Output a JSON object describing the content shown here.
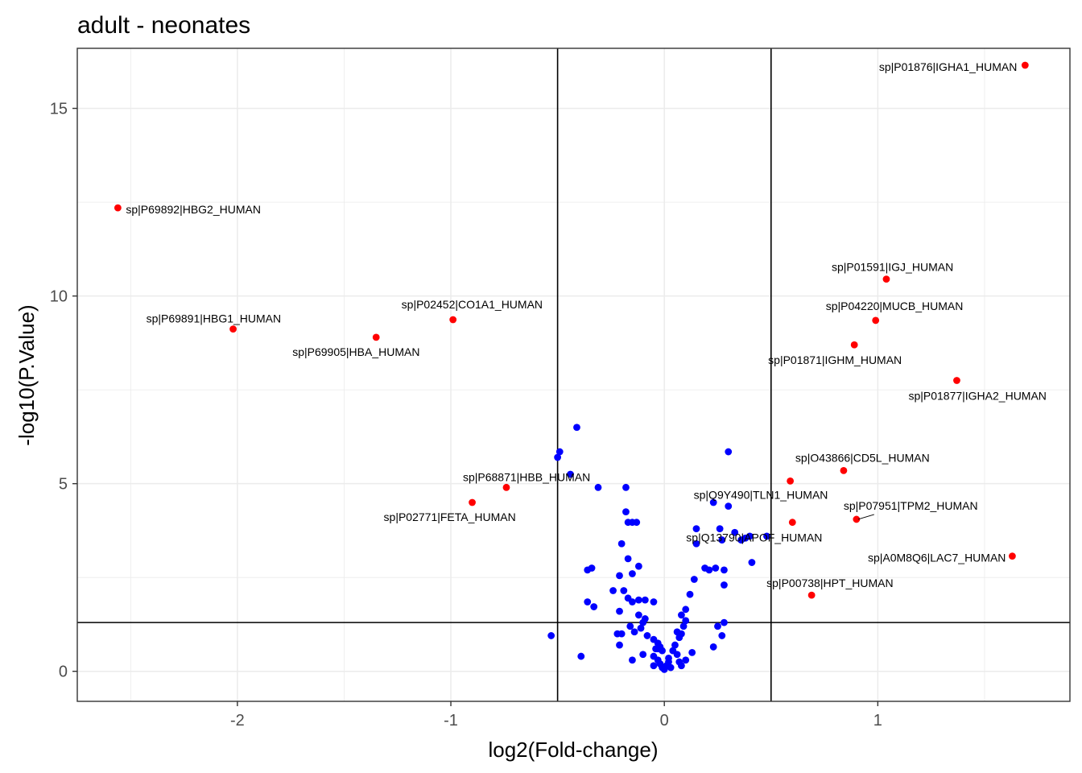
{
  "chart_data": {
    "type": "scatter",
    "title": "adult - neonates",
    "xlabel": "log2(Fold-change)",
    "ylabel": "-log10(P.Value)",
    "xlim": [
      -2.75,
      1.9
    ],
    "ylim": [
      -0.8,
      16.6
    ],
    "x_ticks": [
      -2,
      -1,
      0,
      1
    ],
    "y_ticks": [
      0,
      5,
      10,
      15
    ],
    "x_tick_labels": [
      "-2",
      "-1",
      "0",
      "1"
    ],
    "y_tick_labels": [
      "0",
      "5",
      "10",
      "15"
    ],
    "grid": true,
    "theme": "bw",
    "thresholds": {
      "fold_change": [
        -0.5,
        0.5
      ],
      "p_value_line": 1.3
    },
    "colors": {
      "significant": "#ff0000",
      "not_significant": "#0000ff",
      "line": "#000000",
      "grid": "#ebebeb",
      "label_text": "#000000"
    },
    "significant": [
      {
        "label": "sp|P01876|IGHA1_HUMAN",
        "x": 1.69,
        "y": 16.15
      },
      {
        "label": "sp|P69892|HBG2_HUMAN",
        "x": -2.56,
        "y": 12.35
      },
      {
        "label": "sp|P01591|IGJ_HUMAN",
        "x": 1.04,
        "y": 10.45
      },
      {
        "label": "sp|P02452|CO1A1_HUMAN",
        "x": -0.99,
        "y": 9.37
      },
      {
        "label": "sp|P04220|MUCB_HUMAN",
        "x": 0.99,
        "y": 9.35
      },
      {
        "label": "sp|P69891|HBG1_HUMAN",
        "x": -2.02,
        "y": 9.12
      },
      {
        "label": "sp|P69905|HBA_HUMAN",
        "x": -1.35,
        "y": 8.9
      },
      {
        "label": "sp|P01871|IGHM_HUMAN",
        "x": 0.89,
        "y": 8.7
      },
      {
        "label": "sp|P01877|IGHA2_HUMAN",
        "x": 1.37,
        "y": 7.75
      },
      {
        "label": "sp|O43866|CD5L_HUMAN",
        "x": 0.84,
        "y": 5.35
      },
      {
        "label": "sp|Q9Y490|TLN1_HUMAN",
        "x": 0.59,
        "y": 5.07
      },
      {
        "label": "sp|P68871|HBB_HUMAN",
        "x": -0.74,
        "y": 4.9
      },
      {
        "label": "sp|P02771|FETA_HUMAN",
        "x": -0.9,
        "y": 4.5
      },
      {
        "label": "sp|P07951|TPM2_HUMAN",
        "x": 0.9,
        "y": 4.05
      },
      {
        "label": "sp|Q13790|APOF_HUMAN",
        "x": 0.6,
        "y": 3.97
      },
      {
        "label": "sp|A0M8Q6|LAC7_HUMAN",
        "x": 1.63,
        "y": 3.07
      },
      {
        "label": "sp|P00738|HPT_HUMAN",
        "x": 0.69,
        "y": 2.03
      }
    ],
    "not_significant": [
      [
        -0.41,
        6.5
      ],
      [
        -0.49,
        5.85
      ],
      [
        -0.5,
        5.7
      ],
      [
        -0.44,
        5.25
      ],
      [
        -0.31,
        4.9
      ],
      [
        -0.18,
        4.9
      ],
      [
        -0.18,
        4.25
      ],
      [
        -0.17,
        3.97
      ],
      [
        -0.15,
        3.97
      ],
      [
        -0.13,
        3.97
      ],
      [
        -0.2,
        3.4
      ],
      [
        -0.17,
        3.0
      ],
      [
        -0.34,
        2.75
      ],
      [
        -0.36,
        2.7
      ],
      [
        -0.12,
        2.8
      ],
      [
        -0.21,
        2.55
      ],
      [
        -0.15,
        2.6
      ],
      [
        -0.36,
        1.85
      ],
      [
        -0.33,
        1.72
      ],
      [
        -0.24,
        2.15
      ],
      [
        -0.19,
        2.15
      ],
      [
        -0.17,
        1.95
      ],
      [
        -0.15,
        1.85
      ],
      [
        -0.12,
        1.9
      ],
      [
        -0.09,
        1.9
      ],
      [
        -0.05,
        1.85
      ],
      [
        -0.21,
        1.6
      ],
      [
        -0.12,
        1.5
      ],
      [
        -0.09,
        1.4
      ],
      [
        -0.11,
        1.15
      ],
      [
        -0.1,
        1.3
      ],
      [
        -0.16,
        1.2
      ],
      [
        -0.14,
        1.05
      ],
      [
        -0.22,
        1.0
      ],
      [
        -0.2,
        1.0
      ],
      [
        -0.08,
        0.95
      ],
      [
        -0.05,
        0.85
      ],
      [
        -0.03,
        0.75
      ],
      [
        -0.01,
        0.55
      ],
      [
        -0.02,
        0.65
      ],
      [
        -0.04,
        0.6
      ],
      [
        -0.05,
        0.4
      ],
      [
        -0.03,
        0.3
      ],
      [
        -0.02,
        0.2
      ],
      [
        -0.01,
        0.1
      ],
      [
        0.0,
        0.05
      ],
      [
        0.01,
        0.15
      ],
      [
        0.02,
        0.25
      ],
      [
        -0.1,
        0.45
      ],
      [
        -0.15,
        0.3
      ],
      [
        -0.21,
        0.7
      ],
      [
        -0.53,
        0.95
      ],
      [
        -0.39,
        0.4
      ],
      [
        -0.05,
        0.15
      ],
      [
        -0.03,
        0.6
      ],
      [
        0.02,
        0.35
      ],
      [
        0.04,
        0.55
      ],
      [
        0.05,
        0.7
      ],
      [
        0.06,
        1.05
      ],
      [
        0.08,
        1.0
      ],
      [
        0.07,
        0.9
      ],
      [
        0.09,
        1.2
      ],
      [
        0.08,
        1.5
      ],
      [
        0.1,
        1.35
      ],
      [
        0.06,
        0.45
      ],
      [
        0.03,
        0.1
      ],
      [
        0.07,
        0.25
      ],
      [
        0.1,
        0.3
      ],
      [
        0.13,
        0.5
      ],
      [
        0.08,
        0.15
      ],
      [
        0.1,
        1.65
      ],
      [
        0.12,
        2.05
      ],
      [
        0.14,
        2.45
      ],
      [
        0.15,
        3.4
      ],
      [
        0.15,
        3.8
      ],
      [
        0.19,
        2.75
      ],
      [
        0.21,
        2.7
      ],
      [
        0.23,
        4.5
      ],
      [
        0.24,
        2.75
      ],
      [
        0.26,
        3.8
      ],
      [
        0.27,
        3.5
      ],
      [
        0.28,
        2.7
      ],
      [
        0.28,
        2.3
      ],
      [
        0.28,
        1.3
      ],
      [
        0.3,
        5.85
      ],
      [
        0.3,
        4.4
      ],
      [
        0.33,
        3.7
      ],
      [
        0.36,
        3.5
      ],
      [
        0.38,
        3.55
      ],
      [
        0.4,
        3.6
      ],
      [
        0.41,
        2.9
      ],
      [
        0.48,
        3.6
      ],
      [
        0.23,
        0.65
      ],
      [
        0.27,
        0.95
      ],
      [
        0.25,
        1.2
      ]
    ]
  }
}
